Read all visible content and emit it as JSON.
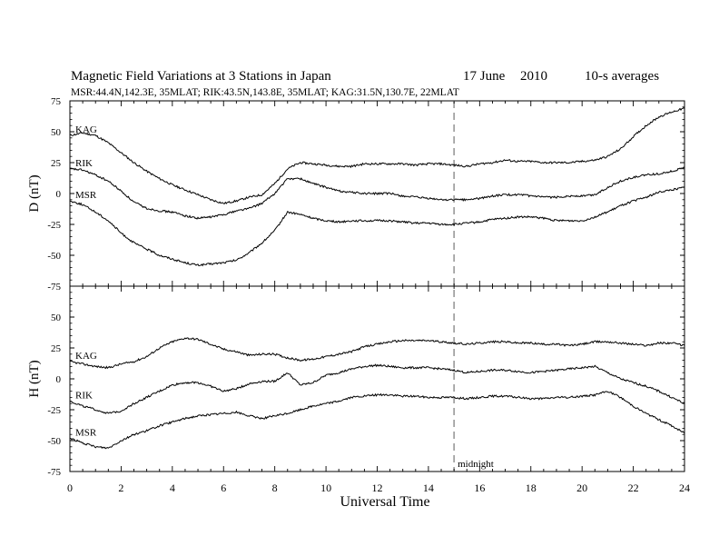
{
  "header": {
    "title": "Magnetic Field Variations at 3 Stations in Japan",
    "date": "17 June",
    "year": "2010",
    "averaging": "10-s averages",
    "stations_line": "MSR:44.4N,142.3E, 35MLAT;  RIK:43.5N,143.8E, 35MLAT;  KAG:31.5N,130.7E, 22MLAT"
  },
  "chart_data": [
    {
      "type": "line",
      "panel": "D",
      "ylabel": "D (nT)",
      "ylim": [
        -75,
        75
      ],
      "yticks": [
        -75,
        -50,
        -25,
        0,
        25,
        50,
        75
      ],
      "xlim": [
        0,
        24
      ],
      "series": [
        {
          "name": "KAG",
          "x": [
            0,
            0.5,
            1,
            1.5,
            2,
            2.5,
            3,
            3.5,
            4,
            4.5,
            5,
            5.5,
            6,
            6.5,
            7,
            7.5,
            8,
            8.5,
            9,
            9.5,
            10,
            10.5,
            11,
            11.5,
            12,
            12.5,
            13,
            13.5,
            14,
            14.5,
            15,
            15.5,
            16,
            16.5,
            17,
            17.5,
            18,
            18.5,
            19,
            19.5,
            20,
            20.5,
            21,
            21.5,
            22,
            22.5,
            23,
            23.5,
            24
          ],
          "values": [
            47,
            49,
            47,
            41,
            33,
            25,
            18,
            12,
            7,
            3,
            -1,
            -5,
            -8,
            -6,
            -3,
            -1,
            8,
            20,
            25,
            24,
            23,
            22,
            22,
            24,
            24,
            24,
            24,
            23,
            24,
            24,
            23,
            22,
            24,
            25,
            27,
            26,
            26,
            25,
            25,
            25,
            26,
            27,
            30,
            36,
            46,
            55,
            62,
            66,
            69
          ]
        },
        {
          "name": "RIK",
          "x": [
            0,
            0.5,
            1,
            1.5,
            2,
            2.5,
            3,
            3.5,
            4,
            4.5,
            5,
            5.5,
            6,
            6.5,
            7,
            7.5,
            8,
            8.5,
            9,
            9.5,
            10,
            10.5,
            11,
            11.5,
            12,
            12.5,
            13,
            13.5,
            14,
            14.5,
            15,
            15.5,
            16,
            16.5,
            17,
            17.5,
            18,
            18.5,
            19,
            19.5,
            20,
            20.5,
            21,
            21.5,
            22,
            22.5,
            23,
            23.5,
            24
          ],
          "values": [
            20,
            19,
            15,
            10,
            2,
            -7,
            -12,
            -14,
            -15,
            -18,
            -20,
            -19,
            -17,
            -14,
            -12,
            -8,
            0,
            12,
            12,
            8,
            5,
            2,
            1,
            0,
            0,
            0,
            -2,
            -3,
            -4,
            -5,
            -5,
            -5,
            -4,
            -2,
            -1,
            -1,
            -2,
            -3,
            -3,
            -2,
            -2,
            -1,
            5,
            10,
            13,
            15,
            16,
            18,
            21
          ]
        },
        {
          "name": "MSR",
          "x": [
            0,
            0.5,
            1,
            1.5,
            2,
            2.5,
            3,
            3.5,
            4,
            4.5,
            5,
            5.5,
            6,
            6.5,
            7,
            7.5,
            8,
            8.5,
            9,
            9.5,
            10,
            10.5,
            11,
            11.5,
            12,
            12.5,
            13,
            13.5,
            14,
            14.5,
            15,
            15.5,
            16,
            16.5,
            17,
            17.5,
            18,
            18.5,
            19,
            19.5,
            20,
            20.5,
            21,
            21.5,
            22,
            22.5,
            23,
            23.5,
            24
          ],
          "values": [
            -6,
            -9,
            -15,
            -22,
            -32,
            -40,
            -45,
            -50,
            -53,
            -56,
            -58,
            -57,
            -56,
            -54,
            -48,
            -40,
            -30,
            -15,
            -17,
            -20,
            -22,
            -23,
            -22,
            -22,
            -22,
            -22,
            -23,
            -24,
            -24,
            -25,
            -25,
            -24,
            -23,
            -21,
            -20,
            -19,
            -19,
            -20,
            -22,
            -22,
            -22,
            -19,
            -15,
            -10,
            -6,
            -3,
            1,
            3,
            5
          ]
        }
      ]
    },
    {
      "type": "line",
      "panel": "H",
      "ylabel": "H (nT)",
      "xlabel": "Universal Time",
      "ylim": [
        -75,
        75
      ],
      "yticks": [
        -75,
        -50,
        -25,
        0,
        25,
        50
      ],
      "xlim": [
        0,
        24
      ],
      "xticks": [
        0,
        2,
        4,
        6,
        8,
        10,
        12,
        14,
        16,
        18,
        20,
        22,
        24
      ],
      "series": [
        {
          "name": "KAG",
          "x": [
            0,
            0.5,
            1,
            1.5,
            2,
            2.5,
            3,
            3.5,
            4,
            4.5,
            5,
            5.5,
            6,
            6.5,
            7,
            7.5,
            8,
            8.5,
            9,
            9.5,
            10,
            10.5,
            11,
            11.5,
            12,
            12.5,
            13,
            13.5,
            14,
            14.5,
            15,
            15.5,
            16,
            16.5,
            17,
            17.5,
            18,
            18.5,
            19,
            19.5,
            20,
            20.5,
            21,
            21.5,
            22,
            22.5,
            23,
            23.5,
            24
          ],
          "values": [
            14,
            12,
            10,
            9,
            12,
            14,
            18,
            25,
            30,
            33,
            32,
            28,
            24,
            22,
            19,
            20,
            20,
            17,
            15,
            16,
            18,
            20,
            22,
            26,
            28,
            30,
            31,
            31,
            31,
            30,
            29,
            28,
            29,
            30,
            30,
            29,
            29,
            28,
            28,
            27,
            28,
            30,
            30,
            29,
            28,
            27,
            29,
            29,
            27
          ]
        },
        {
          "name": "RIK",
          "x": [
            0,
            0.5,
            1,
            1.5,
            2,
            2.5,
            3,
            3.5,
            4,
            4.5,
            5,
            5.5,
            6,
            6.5,
            7,
            7.5,
            8,
            8.5,
            9,
            9.5,
            10,
            10.5,
            11,
            11.5,
            12,
            12.5,
            13,
            13.5,
            14,
            14.5,
            15,
            15.5,
            16,
            16.5,
            17,
            17.5,
            18,
            18.5,
            19,
            19.5,
            20,
            20.5,
            21,
            21.5,
            22,
            22.5,
            23,
            23.5,
            24
          ],
          "values": [
            -18,
            -22,
            -25,
            -28,
            -26,
            -20,
            -15,
            -10,
            -5,
            -3,
            -3,
            -6,
            -10,
            -8,
            -4,
            -2,
            -2,
            5,
            -5,
            -3,
            3,
            5,
            8,
            10,
            11,
            10,
            9,
            9,
            9,
            8,
            7,
            5,
            6,
            7,
            7,
            6,
            5,
            6,
            7,
            8,
            9,
            10,
            5,
            0,
            -3,
            -6,
            -10,
            -15,
            -20
          ]
        },
        {
          "name": "MSR",
          "x": [
            0,
            0.5,
            1,
            1.5,
            2,
            2.5,
            3,
            3.5,
            4,
            4.5,
            5,
            5.5,
            6,
            6.5,
            7,
            7.5,
            8,
            8.5,
            9,
            9.5,
            10,
            10.5,
            11,
            11.5,
            12,
            12.5,
            13,
            13.5,
            14,
            14.5,
            15,
            15.5,
            16,
            16.5,
            17,
            17.5,
            18,
            18.5,
            19,
            19.5,
            20,
            20.5,
            21,
            21.5,
            22,
            22.5,
            23,
            23.5,
            24
          ],
          "values": [
            -48,
            -52,
            -55,
            -56,
            -50,
            -45,
            -42,
            -38,
            -35,
            -32,
            -30,
            -29,
            -28,
            -27,
            -30,
            -32,
            -30,
            -28,
            -25,
            -22,
            -20,
            -18,
            -15,
            -14,
            -13,
            -13,
            -14,
            -14,
            -15,
            -15,
            -15,
            -16,
            -15,
            -14,
            -14,
            -15,
            -16,
            -16,
            -15,
            -15,
            -14,
            -13,
            -10,
            -15,
            -22,
            -28,
            -33,
            -38,
            -44
          ]
        }
      ]
    }
  ],
  "annotations": {
    "midnight": {
      "label": "midnight",
      "x": 15
    }
  }
}
